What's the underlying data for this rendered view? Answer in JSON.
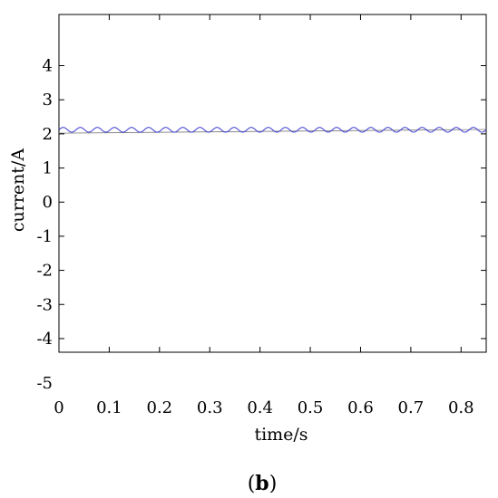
{
  "chart_data": {
    "type": "line",
    "xlabel": "time/s",
    "ylabel": "current/A",
    "caption_open": "(",
    "caption_letter": "b",
    "caption_close": ")",
    "xlim": [
      0,
      0.85
    ],
    "ylim": [
      -4.4,
      5.5
    ],
    "x_ticks": [
      {
        "value": 0,
        "label": "0"
      },
      {
        "value": 0.1,
        "label": "0.1"
      },
      {
        "value": 0.2,
        "label": "0.2"
      },
      {
        "value": 0.3,
        "label": "0.3"
      },
      {
        "value": 0.4,
        "label": "0.4"
      },
      {
        "value": 0.5,
        "label": "0.5"
      },
      {
        "value": 0.6,
        "label": "0.6"
      },
      {
        "value": 0.7,
        "label": "0.7"
      },
      {
        "value": 0.8,
        "label": "0.8"
      }
    ],
    "y_ticks": [
      {
        "value": 4,
        "label": "4"
      },
      {
        "value": 3,
        "label": "3"
      },
      {
        "value": 2,
        "label": "2"
      },
      {
        "value": 1,
        "label": "1"
      },
      {
        "value": 0,
        "label": "0"
      },
      {
        "value": -1,
        "label": "-1"
      },
      {
        "value": -2,
        "label": "-2"
      },
      {
        "value": -3,
        "label": "-3"
      },
      {
        "value": -4,
        "label": "-4"
      }
    ],
    "extra_y_label": "-5",
    "grid": false,
    "series": [
      {
        "color": "#3b3bd4",
        "mean": 2.12,
        "amplitude": 0.07,
        "period": 0.034,
        "x_start": 0,
        "x_end": 0.85
      }
    ],
    "reference_line": {
      "color": "#777777",
      "x": [
        0,
        0.85
      ],
      "y": [
        2.02,
        2.13
      ]
    }
  }
}
